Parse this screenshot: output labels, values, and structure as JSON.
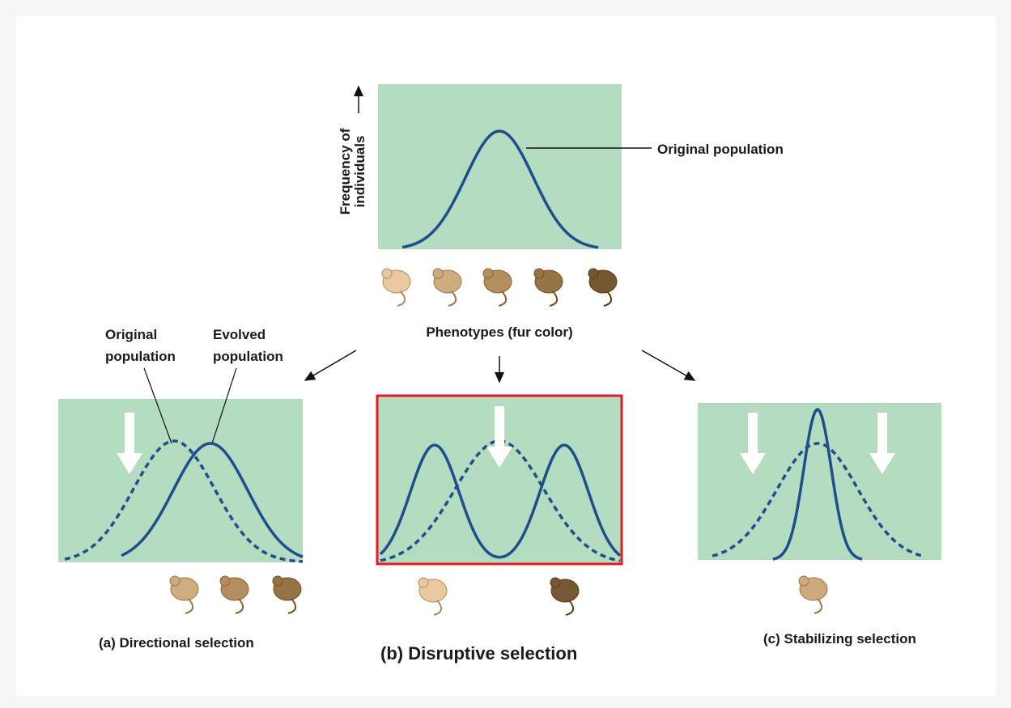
{
  "top": {
    "axis_label": [
      "Frequency of",
      "individuals"
    ],
    "curve_label": "Original population",
    "phenotypes_label": "Phenotypes (fur color)"
  },
  "panel_a": {
    "original_label": [
      "Original",
      "population"
    ],
    "evolved_label": [
      "Evolved",
      "population"
    ],
    "caption": "(a) Directional selection"
  },
  "panel_b": {
    "caption": "(b) Disruptive selection"
  },
  "panel_c": {
    "caption": "(c) Stabilizing selection"
  }
}
